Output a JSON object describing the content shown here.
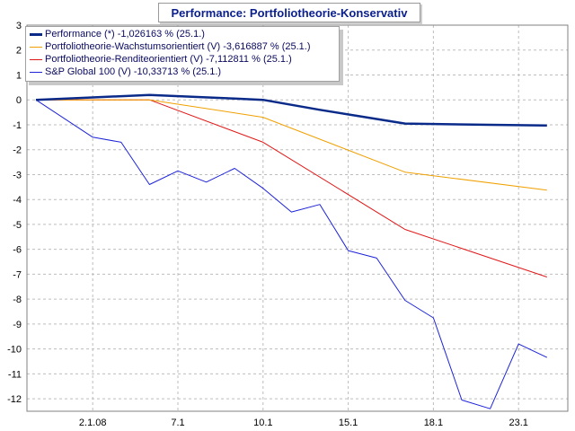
{
  "chart_data": {
    "type": "line",
    "title": "Performance: Portfoliotheorie-Konservativ",
    "xlabel": "",
    "ylabel": "",
    "x_tick_labels": [
      "2.1.08",
      "7.1",
      "10.1",
      "15.1",
      "18.1",
      "23.1"
    ],
    "x": [
      "28.12.07",
      "2.1.08",
      "3.1",
      "4.1",
      "7.1",
      "8.1",
      "9.1",
      "10.1",
      "11.1",
      "14.1",
      "15.1",
      "16.1",
      "17.1",
      "18.1",
      "21.1",
      "22.1",
      "23.1",
      "24.1",
      "25.1"
    ],
    "ylim": [
      -12.5,
      3
    ],
    "y_ticks": [
      3,
      2,
      1,
      0,
      -1,
      -2,
      -3,
      -4,
      -5,
      -6,
      -7,
      -8,
      -9,
      -10,
      -11,
      -12
    ],
    "grid": true,
    "legend_position": "top-left",
    "series": [
      {
        "name": "Performance (*) -1,026163 % (25.1.)",
        "color": "#0a2a8a",
        "width": 2.5,
        "points": [
          [
            0,
            0
          ],
          [
            2,
            0.1
          ],
          [
            4,
            0.2
          ],
          [
            7,
            0.05
          ],
          [
            8,
            0
          ],
          [
            10,
            -0.4
          ],
          [
            13,
            -0.95
          ],
          [
            16,
            -1.0
          ],
          [
            18,
            -1.03
          ]
        ]
      },
      {
        "name": "Portfoliotheorie-Wachstumsorientiert (V) -3,616887 % (25.1.)",
        "color": "#f0a000",
        "width": 1,
        "points": [
          [
            0,
            0
          ],
          [
            4,
            0
          ],
          [
            8,
            -0.7
          ],
          [
            13,
            -2.9
          ],
          [
            18,
            -3.62
          ]
        ]
      },
      {
        "name": "Portfoliotheorie-Renditeorientiert (V) -7,112811 % (25.1.)",
        "color": "#e01818",
        "width": 1,
        "points": [
          [
            0,
            0
          ],
          [
            4,
            0
          ],
          [
            8,
            -1.7
          ],
          [
            13,
            -5.2
          ],
          [
            18,
            -7.11
          ]
        ]
      },
      {
        "name": "S&P Global 100 (V) -10,33713 % (25.1.)",
        "color": "#1c22d8",
        "width": 1,
        "points": [
          [
            0,
            0
          ],
          [
            2,
            -1.5
          ],
          [
            3,
            -1.7
          ],
          [
            4,
            -3.4
          ],
          [
            5,
            -2.85
          ],
          [
            6,
            -3.3
          ],
          [
            7,
            -2.75
          ],
          [
            8,
            -3.55
          ],
          [
            9,
            -4.5
          ],
          [
            10,
            -4.2
          ],
          [
            11,
            -6.05
          ],
          [
            12,
            -6.35
          ],
          [
            13,
            -8.05
          ],
          [
            14,
            -8.75
          ],
          [
            15,
            -12.05
          ],
          [
            16,
            -12.4
          ],
          [
            17,
            -9.8
          ],
          [
            18,
            -10.34
          ]
        ]
      }
    ]
  }
}
